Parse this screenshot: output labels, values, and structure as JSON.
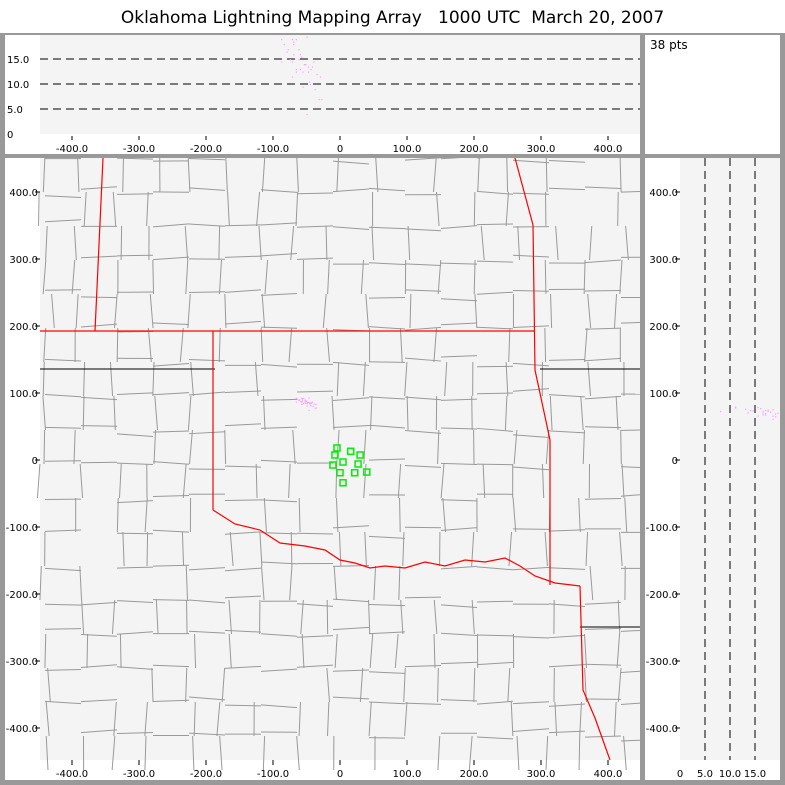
{
  "title": "Oklahoma Lightning Mapping Array   1000 UTC  March 20, 2007",
  "info": {
    "point_count": "38 pts"
  },
  "altitude_panel": {
    "y_ticks": [
      "0",
      "5.0",
      "10.0",
      "15.0"
    ],
    "x_ticks": [
      "-400.0",
      "-300.0",
      "-200.0",
      "-100.0",
      "0",
      "100.0",
      "200.0",
      "300.0",
      "400.0"
    ]
  },
  "map_panel": {
    "x_ticks": [
      "-400.0",
      "-300.0",
      "-200.0",
      "-100.0",
      "0",
      "100.0",
      "200.0",
      "300.0",
      "400.0"
    ],
    "y_ticks": [
      "400.0",
      "300.0",
      "200.0",
      "100.0",
      "0",
      "-100.0",
      "-200.0",
      "-300.0",
      "-400.0"
    ]
  },
  "side_panel": {
    "x_ticks": [
      "0",
      "5.0",
      "10.0",
      "15.0"
    ],
    "y_ticks": [
      "400.0",
      "300.0",
      "200.0",
      "100.0",
      "0",
      "-100.0",
      "-200.0",
      "-300.0",
      "-400.0"
    ]
  },
  "colors": {
    "state_border": "#ff0000",
    "county_border": "#999999",
    "station": "#00ee00",
    "source": "#ff99ff",
    "background": "#f4f4f4"
  },
  "stations_km": [
    [
      -4.5,
      18
    ],
    [
      -7.5,
      7.5
    ],
    [
      -10.5,
      -7.5
    ],
    [
      4.5,
      -3
    ],
    [
      16,
      13
    ],
    [
      30,
      7.5
    ],
    [
      27,
      -6
    ],
    [
      0,
      -19
    ],
    [
      22,
      -19
    ],
    [
      40,
      -18
    ],
    [
      4.5,
      -34
    ]
  ],
  "sources": [
    [
      -88,
      19
    ],
    [
      -84,
      18
    ],
    [
      -72,
      19
    ],
    [
      -70,
      18
    ],
    [
      -66,
      19
    ],
    [
      -50,
      19.5
    ],
    [
      -78,
      17
    ],
    [
      -62,
      17
    ],
    [
      -60,
      16
    ],
    [
      -70,
      16
    ],
    [
      -58,
      15.5
    ],
    [
      -75,
      15
    ],
    [
      -88,
      14.5
    ],
    [
      -52,
      14
    ],
    [
      -48,
      13.5
    ],
    [
      -44,
      13
    ],
    [
      -66,
      13
    ],
    [
      -56,
      12.5
    ],
    [
      -48,
      12.5
    ],
    [
      -72,
      11.5
    ],
    [
      -30,
      11.5
    ],
    [
      -46,
      10.5
    ],
    [
      -56,
      9.5
    ],
    [
      -38,
      9
    ],
    [
      -32,
      7
    ],
    [
      -28,
      7
    ],
    [
      -50,
      4
    ],
    [
      -62,
      15
    ],
    [
      -72,
      14.5
    ],
    [
      -42,
      13.5
    ],
    [
      -66,
      12.5
    ],
    [
      -40,
      14.5
    ],
    [
      -54,
      14
    ],
    [
      -70,
      18.5
    ],
    [
      -80,
      16.5
    ],
    [
      -45,
      10
    ],
    [
      -35,
      12
    ],
    [
      -60,
      13
    ]
  ]
}
